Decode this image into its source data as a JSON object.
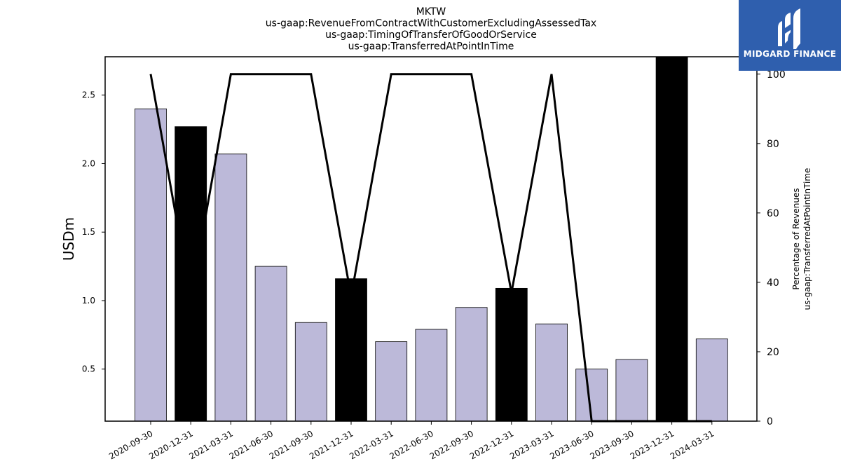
{
  "chart_data": {
    "type": "bar",
    "title_lines": [
      "MKTW",
      "us-gaap:RevenueFromContractWithCustomerExcludingAssessedTax",
      "us-gaap:TimingOfTransferOfGoodOrService",
      "us-gaap:TransferredAtPointInTime"
    ],
    "ylabel": "USDm",
    "ylabel_right_lines": [
      "Percentage of Revenues",
      "us-gaap:TransferredAtPointInTime"
    ],
    "categories": [
      "2020-09-30",
      "2020-12-31",
      "2021-03-31",
      "2021-06-30",
      "2021-09-30",
      "2021-12-31",
      "2022-03-31",
      "2022-06-30",
      "2022-09-30",
      "2022-12-31",
      "2023-03-31",
      "2023-06-30",
      "2023-09-30",
      "2023-12-31",
      "2024-03-31"
    ],
    "values": [
      2.4,
      2.27,
      2.07,
      1.25,
      0.84,
      1.16,
      0.7,
      0.79,
      0.95,
      1.09,
      0.83,
      0.5,
      0.57,
      2.78,
      0.72
    ],
    "bar_colors": [
      "#bcb9d9",
      "#000000",
      "#bcb9d9",
      "#bcb9d9",
      "#bcb9d9",
      "#000000",
      "#bcb9d9",
      "#bcb9d9",
      "#bcb9d9",
      "#000000",
      "#bcb9d9",
      "#bcb9d9",
      "#bcb9d9",
      "#000000",
      "#bcb9d9"
    ],
    "line_series": {
      "values": [
        100,
        35,
        100,
        100,
        100,
        36,
        100,
        100,
        100,
        37,
        100,
        0,
        0,
        0,
        0
      ],
      "color": "#000000"
    },
    "ylim": [
      0.12,
      2.78
    ],
    "yticks": [
      0.5,
      1.0,
      1.5,
      2.0,
      2.5
    ],
    "ylim_right": [
      0,
      105
    ],
    "yticks_right": [
      0,
      20,
      40,
      60,
      80,
      100
    ],
    "grid": false
  },
  "logo": {
    "text": "MIDGARD FINANCE",
    "bg": "#2f5fae"
  }
}
